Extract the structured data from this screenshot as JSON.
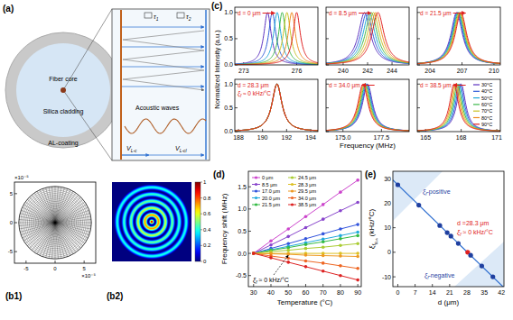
{
  "panel_labels": {
    "a": "(a)",
    "b1": "(b1)",
    "b2": "(b2)",
    "c": "(c)",
    "d": "(d)",
    "e": "(e)"
  },
  "diagram": {
    "core": "Fiber core",
    "cladding": "Silica cladding",
    "coating": "AL-coating",
    "waves": "Acoustic waves",
    "tau1": {
      "symbol": "τ",
      "sub": "1"
    },
    "tau2": {
      "symbol": "τ",
      "sub": "2"
    },
    "v_core": {
      "symbol": "V",
      "sub": "L-c"
    },
    "v_clad": {
      "symbol": "V",
      "sub": "L-cl"
    }
  },
  "mesh": {
    "xlim": [
      -7,
      7
    ],
    "ylim": [
      -7,
      7
    ],
    "xticks": [
      -5,
      0,
      5
    ],
    "yticks": [
      -5,
      0,
      5
    ],
    "outer_radius": 6.25,
    "exponent": "×10⁻⁵"
  },
  "mode_field": {
    "colorbar_range": [
      0,
      1
    ],
    "colorbar_ticks": [
      0,
      0.2,
      0.4,
      0.6,
      0.8,
      1
    ]
  },
  "chart_data": [
    {
      "type": "line",
      "annotation": "d = 0 μm",
      "ylabel": "Normalized Intensity (a.u.)",
      "xlim": [
        272.5,
        277.2
      ],
      "xticks": [
        273,
        276
      ],
      "ylim": [
        0,
        1.1
      ],
      "yticks": [
        {
          "value": 0,
          "label": "0.0"
        },
        {
          "value": 0.5,
          "label": "0.5"
        },
        {
          "value": 1,
          "label": "1.0"
        }
      ],
      "fwhm": 0.5,
      "peak_height": 1,
      "series": [
        {
          "color": "#5b2fbf",
          "peak": 274.35
        },
        {
          "color": "#2f5bd8",
          "peak": 274.62
        },
        {
          "color": "#1fa8d8",
          "peak": 274.9
        },
        {
          "color": "#3cb84a",
          "peak": 275.18
        },
        {
          "color": "#c8c020",
          "peak": 275.45
        },
        {
          "color": "#f08a20",
          "peak": 275.72
        },
        {
          "color": "#e02020",
          "peak": 276.0
        }
      ]
    },
    {
      "type": "line",
      "annotation": "d = 8.5 μm",
      "xlim": [
        238.6,
        245.4
      ],
      "xticks": [
        240,
        242,
        244
      ],
      "ylim": [
        0,
        1.1
      ],
      "yticks": [
        0,
        0.5,
        1
      ],
      "tick_labels": "x",
      "fwhm": 1.2,
      "peak_height": 1,
      "series": [
        {
          "color": "#5b2fbf",
          "peak": 241.75
        },
        {
          "color": "#2f5bd8",
          "peak": 241.93
        },
        {
          "color": "#1fa8d8",
          "peak": 242.12
        },
        {
          "color": "#3cb84a",
          "peak": 242.3
        },
        {
          "color": "#c8c020",
          "peak": 242.48
        },
        {
          "color": "#f08a20",
          "peak": 242.67
        },
        {
          "color": "#e02020",
          "peak": 242.85
        }
      ]
    },
    {
      "type": "line",
      "annotation": "d = 21.5 μm",
      "xlim": [
        202.8,
        210.6
      ],
      "xticks": [
        204,
        207,
        210
      ],
      "ylim": [
        0,
        1.1
      ],
      "yticks": [
        0,
        0.5,
        1
      ],
      "tick_labels": "x",
      "fwhm": 1.3,
      "peak_height": 1,
      "series": [
        {
          "color": "#5b2fbf",
          "peak": 206.5
        },
        {
          "color": "#2f5bd8",
          "peak": 206.57
        },
        {
          "color": "#1fa8d8",
          "peak": 206.63
        },
        {
          "color": "#3cb84a",
          "peak": 206.7
        },
        {
          "color": "#c8c020",
          "peak": 206.77
        },
        {
          "color": "#f08a20",
          "peak": 206.83
        },
        {
          "color": "#e02020",
          "peak": 206.9
        }
      ]
    },
    {
      "type": "line",
      "annotation": "d = 28.3 μm",
      "annotation_2": {
        "symbol": "ξ",
        "sub": "f",
        "text": " ≈ 0 kHz/°C"
      },
      "xlim": [
        187.7,
        194.6
      ],
      "xticks": [
        188,
        190,
        192,
        194
      ],
      "ylim": [
        0,
        1.1
      ],
      "yticks": [
        {
          "value": 0,
          "label": "0.0"
        },
        {
          "value": 0.5,
          "label": "0.5"
        },
        {
          "value": 1,
          "label": "1.0"
        }
      ],
      "fwhm": 1.0,
      "peak_height": 1,
      "series": [
        {
          "color": "#5b2fbf",
          "peak": 191.2
        },
        {
          "color": "#2f5bd8",
          "peak": 191.2
        },
        {
          "color": "#1fa8d8",
          "peak": 191.2
        },
        {
          "color": "#3cb84a",
          "peak": 191.2
        },
        {
          "color": "#c8c020",
          "peak": 191.2
        },
        {
          "color": "#f08a20",
          "peak": 191.2
        },
        {
          "color": "#e02020",
          "peak": 191.2
        }
      ]
    },
    {
      "type": "line",
      "annotation": "d = 34.0 μm",
      "xlabel": "Frequency (MHz)",
      "xlim": [
        173.9,
        179.3
      ],
      "xticks": [
        {
          "value": 175,
          "label": "175.0"
        },
        {
          "value": 177.5,
          "label": "177.5"
        }
      ],
      "ylim": [
        0,
        1.1
      ],
      "yticks": [
        0,
        0.5,
        1
      ],
      "tick_labels": "x",
      "fwhm": 0.8,
      "peak_height": 1,
      "series": [
        {
          "color": "#5b2fbf",
          "peak": 176.6
        },
        {
          "color": "#2f5bd8",
          "peak": 176.55
        },
        {
          "color": "#1fa8d8",
          "peak": 176.5
        },
        {
          "color": "#3cb84a",
          "peak": 176.45
        },
        {
          "color": "#c8c020",
          "peak": 176.4
        },
        {
          "color": "#f08a20",
          "peak": 176.35
        },
        {
          "color": "#e02020",
          "peak": 176.3
        }
      ]
    },
    {
      "type": "line",
      "annotation": "d = 38.5 μm",
      "legend": "upper right",
      "xlim": [
        164.3,
        171.3
      ],
      "xticks": [
        165,
        168,
        171
      ],
      "ylim": [
        0,
        1.1
      ],
      "yticks": [
        0,
        0.5,
        1
      ],
      "tick_labels": "x",
      "fwhm": 0.9,
      "peak_height": 1,
      "series": [
        {
          "name": "30°C",
          "color": "#5b2fbf",
          "peak": 168.0
        },
        {
          "name": "40°C",
          "color": "#2f5bd8",
          "peak": 167.9
        },
        {
          "name": "50°C",
          "color": "#1fa8d8",
          "peak": 167.8
        },
        {
          "name": "60°C",
          "color": "#3cb84a",
          "peak": 167.7
        },
        {
          "name": "70°C",
          "color": "#c8c020",
          "peak": 167.6
        },
        {
          "name": "80°C",
          "color": "#f08a20",
          "peak": 167.5
        },
        {
          "name": "90°C",
          "color": "#e02020",
          "peak": 167.4
        }
      ]
    },
    {
      "type": "line",
      "xlabel": "Temperature (°C)",
      "ylabel": "Frequency shift (MHz)",
      "x": [
        30,
        40,
        50,
        60,
        70,
        80,
        90
      ],
      "xlim": [
        27,
        92
      ],
      "xticks": [
        30,
        40,
        50,
        60,
        70,
        80,
        90
      ],
      "ylim": [
        -0.75,
        1.85
      ],
      "yticks": [
        {
          "value": -0.5,
          "label": "-0.5"
        },
        {
          "value": 0,
          "label": "0.0"
        },
        {
          "value": 0.5,
          "label": "0.5"
        },
        {
          "value": 1,
          "label": "1.0"
        },
        {
          "value": 1.5,
          "label": "1.5"
        }
      ],
      "legend": "upper left",
      "marker": "circle",
      "annotation": {
        "symbol": "ξ",
        "sub": "f",
        "text": " ≈ 0 kHz/°C"
      },
      "series": [
        {
          "name": "0   μm",
          "color": "#cc44cc",
          "values": [
            0,
            0.28,
            0.55,
            0.83,
            1.1,
            1.38,
            1.65
          ]
        },
        {
          "name": "8.5 μm",
          "color": "#8844cc",
          "values": [
            0,
            0.19,
            0.38,
            0.58,
            0.77,
            0.96,
            1.15
          ]
        },
        {
          "name": "17.0 μm",
          "color": "#3355dd",
          "values": [
            0,
            0.11,
            0.22,
            0.33,
            0.44,
            0.55,
            0.65
          ]
        },
        {
          "name": "20.0 μm",
          "color": "#22aadd",
          "values": [
            0,
            0.08,
            0.16,
            0.24,
            0.32,
            0.4,
            0.48
          ]
        },
        {
          "name": "21.5 μm",
          "color": "#33bb44",
          "values": [
            0,
            0.07,
            0.13,
            0.2,
            0.26,
            0.33,
            0.4
          ]
        },
        {
          "name": "24.5 μm",
          "color": "#aacc33",
          "values": [
            0,
            0.04,
            0.07,
            0.11,
            0.14,
            0.18,
            0.22
          ]
        },
        {
          "name": "28.3 μm",
          "color": "#ddc022",
          "values": [
            0,
            0,
            0,
            0,
            0,
            0,
            0
          ]
        },
        {
          "name": "29.5 μm",
          "color": "#ee9922",
          "values": [
            0,
            -0.01,
            -0.02,
            -0.04,
            -0.05,
            -0.06,
            -0.07
          ]
        },
        {
          "name": "34.0 μm",
          "color": "#ee6622",
          "values": [
            0,
            -0.06,
            -0.11,
            -0.17,
            -0.22,
            -0.28,
            -0.34
          ]
        },
        {
          "name": "38.5 μm",
          "color": "#dd2222",
          "values": [
            0,
            -0.1,
            -0.2,
            -0.3,
            -0.4,
            -0.5,
            -0.6
          ]
        }
      ]
    },
    {
      "type": "scatter",
      "xlabel": "d (μm)",
      "ylabel": {
        "symbol": "ξ",
        "sub": "f",
        "subsub": "B,a",
        "text": " (kHz/°C)"
      },
      "x": [
        0,
        8.5,
        17,
        20,
        21.5,
        24.5,
        28.3,
        29.5,
        34,
        38.5
      ],
      "values": [
        27.5,
        19.2,
        10.9,
        8.0,
        6.6,
        3.6,
        0,
        -1.2,
        -5.6,
        -10
      ],
      "colors": [
        "#1f3f9f",
        "#1f3f9f",
        "#1f3f9f",
        "#1f3f9f",
        "#1f3f9f",
        "#1f3f9f",
        "#e02020",
        "#1f3f9f",
        "#1f3f9f",
        "#1f3f9f"
      ],
      "marker": "circle",
      "xlim": [
        -2,
        43
      ],
      "xticks": [
        0,
        7,
        14,
        21,
        28,
        35,
        42
      ],
      "ylim": [
        -14,
        33
      ],
      "yticks": [
        -10,
        0,
        10,
        20,
        30
      ],
      "fit": {
        "x": [
          -2,
          43
        ],
        "values": [
          29.45,
          -14.4
        ],
        "color": "#2f6fd0"
      },
      "annotations": [
        {
          "symbol": "ξ",
          "sub": "f",
          "text": "-positive"
        },
        {
          "symbol": "ξ",
          "sub": "f",
          "text": "-negative"
        },
        {
          "text": "d =28.3 μm"
        },
        {
          "symbol": "ξ",
          "sub": "f",
          "text": " ≈ 0 kHz/°C"
        }
      ]
    }
  ]
}
